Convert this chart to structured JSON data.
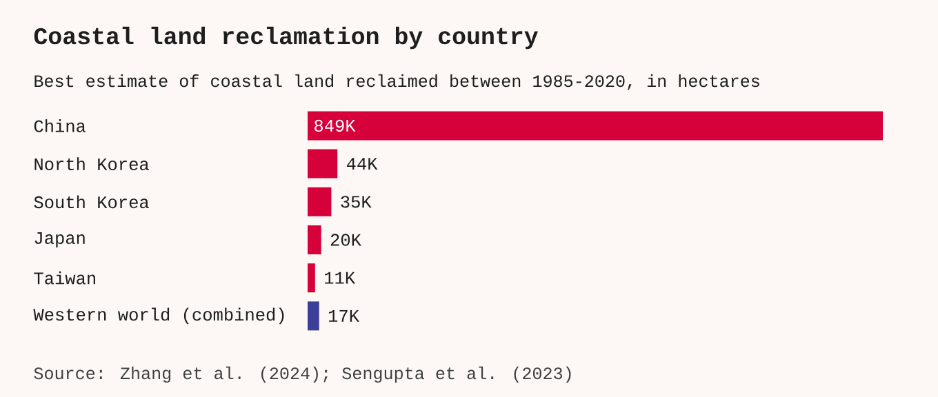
{
  "chart_data": {
    "type": "bar",
    "orientation": "horizontal",
    "title": "Coastal land reclamation by country",
    "subtitle": "Best estimate of coastal land reclaimed between 1985-2020, in hectares",
    "categories": [
      "China",
      "North Korea",
      "South Korea",
      "Japan",
      "Taiwan",
      "Western world (combined)"
    ],
    "values": [
      849000,
      44000,
      35000,
      20000,
      11000,
      17000
    ],
    "colors": [
      "#d6003b",
      "#d6003b",
      "#d6003b",
      "#d6003b",
      "#d6003b",
      "#3b3f98"
    ],
    "value_labels": [
      "849K",
      "44K",
      "35K",
      "20K",
      "11K",
      "17K"
    ],
    "annotations": [
      "Source: Zhang et al. (2024); Sengupta et al. (2023)"
    ]
  }
}
